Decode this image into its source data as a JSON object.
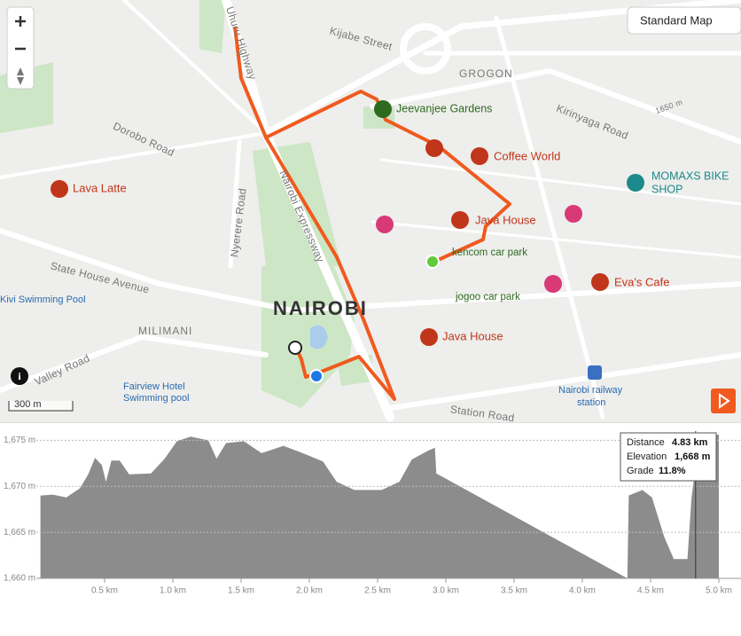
{
  "map": {
    "layer": "Standard Map",
    "scale": "300 m",
    "labels": [
      "Kijabe Street",
      "GROGON",
      "Kirinyaga Road",
      "1650 m",
      "Uhuru Highway",
      "Dorobo Road",
      "Jeevanjee Gardens",
      "Coffee World",
      "Lava Latte",
      "MOMAXS BIKE",
      "SHOP",
      "Java House",
      "kencom car park",
      "Nyerere Road",
      "Nairobi Expressway",
      "State House Avenue",
      "Kivi Swimming Pool",
      "jogoo car park",
      "Eva's Cafe",
      "NAIROBI",
      "MILIMANI",
      "Java House",
      "Valley Road",
      "Fairview Hotel",
      "Swimming pool",
      "Nairobi railway",
      "station",
      "Station Road"
    ]
  },
  "chart_data": {
    "type": "area",
    "color": "#8c8c8c",
    "x": [
      0.03,
      0.12,
      0.22,
      0.32,
      0.38,
      0.43,
      0.48,
      0.51,
      0.55,
      0.61,
      0.68,
      0.84,
      0.94,
      1.03,
      1.13,
      1.26,
      1.32,
      1.39,
      1.52,
      1.65,
      1.81,
      1.97,
      2.1,
      2.2,
      2.33,
      2.53,
      2.66,
      2.75,
      2.86,
      2.92,
      2.93,
      4.33,
      4.34,
      4.44,
      4.51,
      4.6,
      4.67,
      4.77,
      4.8,
      4.86,
      5.0
    ],
    "series": [
      {
        "values": [
          1669.0,
          1669.1,
          1668.8,
          1669.8,
          1671.3,
          1673.1,
          1672.3,
          1670.5,
          1672.8,
          1672.8,
          1671.3,
          1671.4,
          1673.0,
          1674.9,
          1675.4,
          1675.0,
          1673.0,
          1674.7,
          1674.9,
          1673.6,
          1674.4,
          1673.5,
          1672.7,
          1670.5,
          1669.6,
          1669.6,
          1670.5,
          1672.9,
          1673.8,
          1674.2,
          1671.4,
          1660,
          1669.0,
          1669.6,
          1668.8,
          1664.5,
          1662.1,
          1662.1,
          1668.8,
          1675.6,
          1675.6
        ]
      }
    ],
    "xlim": [
      0,
      5.0
    ],
    "xticks": [
      {
        "value": 0.5,
        "label": "0.5 km"
      },
      {
        "value": 1.0,
        "label": "1.0 km"
      },
      {
        "value": 1.5,
        "label": "1.5 km"
      },
      {
        "value": 2.0,
        "label": "2.0 km"
      },
      {
        "value": 2.5,
        "label": "2.5 km"
      },
      {
        "value": 3.0,
        "label": "3.0 km"
      },
      {
        "value": 3.5,
        "label": "3.5 km"
      },
      {
        "value": 4.0,
        "label": "4.0 km"
      },
      {
        "value": 4.5,
        "label": "4.5 km"
      },
      {
        "value": 5.0,
        "label": "5.0 km"
      }
    ],
    "ylim": [
      1660,
      1676
    ],
    "yticks": [
      {
        "value": 1660,
        "label": "1,660 m"
      },
      {
        "value": 1665,
        "label": "1,665 m"
      },
      {
        "value": 1670,
        "label": "1,670 m"
      },
      {
        "value": 1675,
        "label": "1,675 m"
      }
    ],
    "grid": true,
    "tooltip": {
      "x": 4.83,
      "rows": [
        {
          "name": "Distance",
          "value": "4.83 km"
        },
        {
          "name": "Elevation",
          "value": "1,668 m"
        },
        {
          "name": "Grade",
          "value": "11.8%"
        }
      ]
    }
  }
}
